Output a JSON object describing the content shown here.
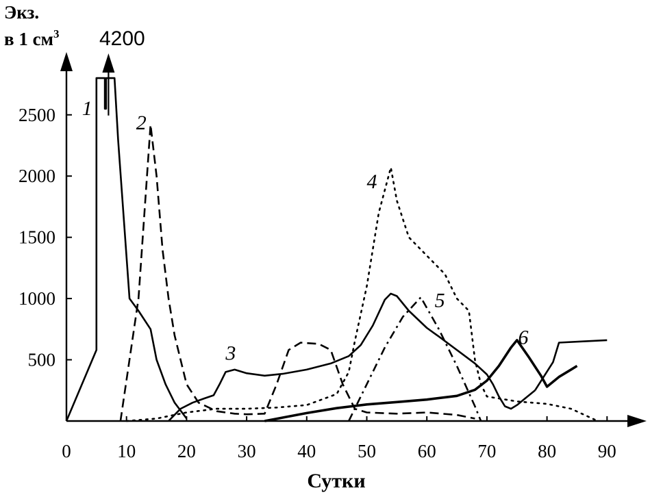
{
  "chart_data": {
    "type": "line",
    "ylabel_line1": "Экз.",
    "ylabel_line2": "в 1 см",
    "ylabel_sup": "3",
    "xlabel": "Сутки",
    "xlim": [
      0,
      92
    ],
    "ylim": [
      0,
      2800
    ],
    "x_ticks": [
      "0",
      "10",
      "20",
      "30",
      "40",
      "50",
      "60",
      "70",
      "80",
      "90"
    ],
    "x_tick_values": [
      0,
      10,
      20,
      30,
      40,
      50,
      60,
      70,
      80,
      90
    ],
    "y_ticks": [
      "500",
      "1000",
      "1500",
      "2000",
      "2500"
    ],
    "y_tick_values": [
      500,
      1000,
      1500,
      2000,
      2500
    ],
    "annotation": {
      "text": "4200",
      "x": 7,
      "y": 2550
    },
    "series": [
      {
        "name": "1",
        "style": "solid",
        "label_at": {
          "x": 2.6,
          "y": 2500
        },
        "values": [
          [
            0,
            0
          ],
          [
            5,
            580
          ],
          [
            5,
            2800
          ],
          [
            6.4,
            2800
          ],
          [
            6.4,
            2550
          ],
          [
            6.6,
            2550
          ],
          [
            6.6,
            2800
          ],
          [
            8,
            2800
          ],
          [
            8.6,
            2300
          ],
          [
            10.5,
            1000
          ],
          [
            12,
            900
          ],
          [
            14,
            750
          ],
          [
            15,
            500
          ],
          [
            16.5,
            300
          ],
          [
            18,
            150
          ],
          [
            20,
            20
          ]
        ]
      },
      {
        "name": "2",
        "style": "dashed",
        "label_at": {
          "x": 11.6,
          "y": 2380
        },
        "values": [
          [
            9,
            0
          ],
          [
            12,
            1000
          ],
          [
            14,
            2420
          ],
          [
            15,
            2000
          ],
          [
            16,
            1400
          ],
          [
            17,
            1000
          ],
          [
            18,
            700
          ],
          [
            20,
            300
          ],
          [
            22,
            150
          ],
          [
            25,
            80
          ],
          [
            28,
            60
          ],
          [
            30,
            55
          ],
          [
            33,
            60
          ],
          [
            35,
            300
          ],
          [
            37,
            580
          ],
          [
            39,
            640
          ],
          [
            42,
            630
          ],
          [
            44,
            580
          ],
          [
            46,
            300
          ],
          [
            48,
            100
          ],
          [
            50,
            70
          ],
          [
            55,
            60
          ],
          [
            60,
            70
          ],
          [
            65,
            50
          ],
          [
            68,
            20
          ]
        ]
      },
      {
        "name": "3",
        "style": "solid",
        "label_at": {
          "x": 26.5,
          "y": 500
        },
        "values": [
          [
            17,
            0
          ],
          [
            19,
            100
          ],
          [
            21,
            150
          ],
          [
            23,
            185
          ],
          [
            24.5,
            210
          ],
          [
            25.5,
            300
          ],
          [
            26.5,
            400
          ],
          [
            28,
            420
          ],
          [
            30,
            390
          ],
          [
            33,
            370
          ],
          [
            36,
            385
          ],
          [
            40,
            420
          ],
          [
            44,
            470
          ],
          [
            47,
            530
          ],
          [
            49,
            620
          ],
          [
            51,
            780
          ],
          [
            53,
            990
          ],
          [
            54,
            1040
          ],
          [
            55,
            1020
          ],
          [
            57,
            900
          ],
          [
            60,
            760
          ],
          [
            62,
            690
          ],
          [
            65,
            580
          ],
          [
            68,
            470
          ],
          [
            70,
            380
          ],
          [
            71,
            300
          ],
          [
            72,
            200
          ],
          [
            73,
            120
          ],
          [
            74,
            100
          ],
          [
            75,
            130
          ],
          [
            78,
            250
          ]
        ]
      },
      {
        "name": "4",
        "style": "dotted",
        "label_at": {
          "x": 50,
          "y": 1900
        },
        "values": [
          [
            10,
            0
          ],
          [
            15,
            20
          ],
          [
            20,
            70
          ],
          [
            25,
            100
          ],
          [
            30,
            100
          ],
          [
            35,
            110
          ],
          [
            40,
            130
          ],
          [
            45,
            220
          ],
          [
            47,
            400
          ],
          [
            48,
            650
          ],
          [
            50,
            1100
          ],
          [
            52,
            1700
          ],
          [
            54,
            2070
          ],
          [
            55,
            1800
          ],
          [
            57,
            1500
          ],
          [
            60,
            1350
          ],
          [
            63,
            1200
          ],
          [
            65,
            1000
          ],
          [
            67,
            900
          ],
          [
            68,
            500
          ],
          [
            69,
            300
          ],
          [
            70,
            200
          ],
          [
            75,
            160
          ],
          [
            80,
            140
          ],
          [
            84,
            100
          ],
          [
            88,
            10
          ]
        ]
      },
      {
        "name": "5",
        "style": "dashdot",
        "label_at": {
          "x": 61.3,
          "y": 930
        },
        "values": [
          [
            47,
            0
          ],
          [
            50,
            300
          ],
          [
            53,
            600
          ],
          [
            56,
            850
          ],
          [
            59,
            1010
          ],
          [
            62,
            750
          ],
          [
            65,
            450
          ],
          [
            68,
            120
          ],
          [
            69,
            0
          ]
        ]
      },
      {
        "name": "6",
        "style": "solid",
        "width": 3.6,
        "label_at": {
          "x": 75.2,
          "y": 630
        },
        "values": [
          [
            33,
            0
          ],
          [
            40,
            65
          ],
          [
            45,
            105
          ],
          [
            50,
            135
          ],
          [
            55,
            155
          ],
          [
            60,
            175
          ],
          [
            65,
            205
          ],
          [
            68,
            255
          ],
          [
            70,
            330
          ],
          [
            72,
            450
          ],
          [
            74,
            600
          ],
          [
            75,
            660
          ],
          [
            77,
            520
          ],
          [
            79,
            370
          ],
          [
            80,
            280
          ],
          [
            82,
            360
          ],
          [
            84,
            420
          ],
          [
            85,
            450
          ]
        ]
      },
      {
        "name": "",
        "style": "solid",
        "values": [
          [
            78,
            250
          ],
          [
            81,
            480
          ],
          [
            82,
            640
          ],
          [
            86,
            650
          ],
          [
            90,
            660
          ]
        ]
      }
    ]
  }
}
